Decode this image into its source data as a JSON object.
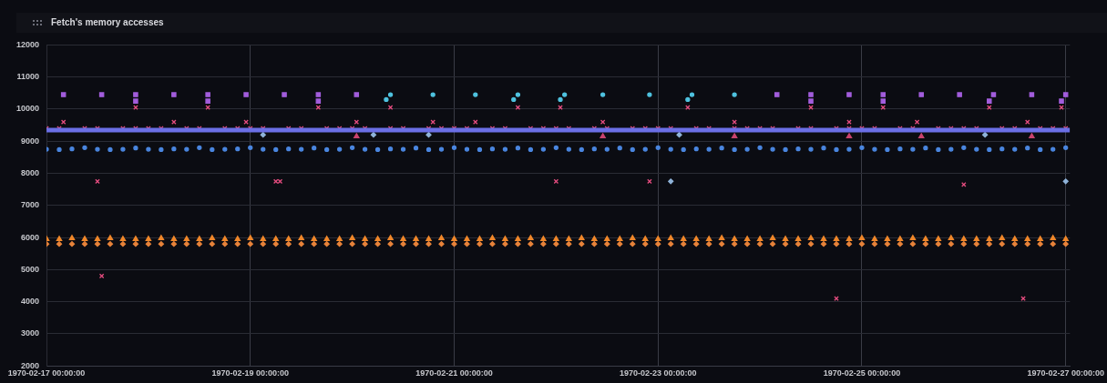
{
  "chart_data": {
    "type": "scatter",
    "title": "Fetch's memory accesses",
    "x": [
      "1970-02-17T00:00",
      "1970-02-17T03:00",
      "1970-02-17T06:00",
      "1970-02-17T09:00",
      "1970-02-17T12:00",
      "1970-02-17T15:00",
      "1970-02-17T18:00",
      "1970-02-17T21:00",
      "1970-02-18T00:00",
      "1970-02-18T03:00",
      "1970-02-18T06:00",
      "1970-02-18T09:00",
      "1970-02-18T12:00",
      "1970-02-18T15:00",
      "1970-02-18T18:00",
      "1970-02-18T21:00",
      "1970-02-19T00:00",
      "1970-02-19T03:00",
      "1970-02-19T06:00",
      "1970-02-19T09:00",
      "1970-02-19T12:00",
      "1970-02-19T15:00",
      "1970-02-19T18:00",
      "1970-02-19T21:00",
      "1970-02-20T00:00",
      "1970-02-20T03:00",
      "1970-02-20T06:00",
      "1970-02-20T09:00",
      "1970-02-20T12:00",
      "1970-02-20T15:00",
      "1970-02-20T18:00",
      "1970-02-20T21:00",
      "1970-02-21T00:00",
      "1970-02-21T03:00",
      "1970-02-21T06:00",
      "1970-02-21T09:00",
      "1970-02-21T12:00",
      "1970-02-21T15:00",
      "1970-02-21T18:00",
      "1970-02-21T21:00",
      "1970-02-22T00:00",
      "1970-02-22T03:00",
      "1970-02-22T06:00",
      "1970-02-22T09:00",
      "1970-02-22T12:00",
      "1970-02-22T15:00",
      "1970-02-22T18:00",
      "1970-02-22T21:00",
      "1970-02-23T00:00",
      "1970-02-23T03:00",
      "1970-02-23T06:00",
      "1970-02-23T09:00",
      "1970-02-23T12:00",
      "1970-02-23T15:00",
      "1970-02-23T18:00",
      "1970-02-23T21:00",
      "1970-02-24T00:00",
      "1970-02-24T03:00",
      "1970-02-24T06:00",
      "1970-02-24T09:00",
      "1970-02-24T12:00",
      "1970-02-24T15:00",
      "1970-02-24T18:00",
      "1970-02-24T21:00",
      "1970-02-25T00:00",
      "1970-02-25T03:00",
      "1970-02-25T06:00",
      "1970-02-25T09:00",
      "1970-02-25T12:00",
      "1970-02-25T15:00",
      "1970-02-25T18:00",
      "1970-02-25T21:00",
      "1970-02-26T00:00",
      "1970-02-26T03:00",
      "1970-02-26T06:00",
      "1970-02-26T09:00",
      "1970-02-26T12:00",
      "1970-02-26T15:00",
      "1970-02-26T18:00",
      "1970-02-26T21:00",
      "1970-02-27T00:00"
    ],
    "xlim": [
      "1970-02-17T00:00",
      "1970-02-27T01:00"
    ],
    "xticks": [
      {
        "value": "1970-02-17T00:00",
        "label": "1970-02-17 00:00:00"
      },
      {
        "value": "1970-02-19T00:00",
        "label": "1970-02-19 00:00:00"
      },
      {
        "value": "1970-02-21T00:00",
        "label": "1970-02-21 00:00:00"
      },
      {
        "value": "1970-02-23T00:00",
        "label": "1970-02-23 00:00:00"
      },
      {
        "value": "1970-02-25T00:00",
        "label": "1970-02-25 00:00:00"
      },
      {
        "value": "1970-02-27T00:00",
        "label": "1970-02-27 00:00:00"
      }
    ],
    "ylim": [
      2000,
      12000
    ],
    "yticks": [
      2000,
      3000,
      4000,
      5000,
      6000,
      7000,
      8000,
      9000,
      10000,
      11000,
      12000
    ],
    "grid": true,
    "series": [
      {
        "type": "line",
        "color": "#6b6fe6",
        "marker": "none",
        "x": [
          "1970-02-17T00:00",
          "1970-02-27T01:00"
        ],
        "values": [
          9350,
          9350
        ]
      },
      {
        "color": "#4a86e0",
        "marker": "circle",
        "values": [
          8750,
          8740,
          8760,
          8800,
          8750,
          8740,
          8750,
          8790,
          8750,
          8740,
          8760,
          8750,
          8800,
          8740,
          8750,
          8760,
          8800,
          8750,
          8740,
          8760,
          8750,
          8790,
          8740,
          8750,
          8800,
          8750,
          8740,
          8760,
          8750,
          8790,
          8740,
          8750,
          8800,
          8750,
          8740,
          8760,
          8750,
          8790,
          8740,
          8750,
          8800,
          8750,
          8740,
          8760,
          8750,
          8790,
          8740,
          8750,
          8800,
          8750,
          8740,
          8760,
          8750,
          8790,
          8740,
          8750,
          8800,
          8750,
          8740,
          8760,
          8750,
          8790,
          8740,
          8750,
          8800,
          8750,
          8740,
          8760,
          8750,
          8790,
          8740,
          8750,
          8800,
          8750,
          8740,
          8760,
          8750,
          8790,
          8740,
          8750,
          8800
        ]
      },
      {
        "color": "#e54c7f",
        "marker": "cross",
        "values": [
          9400,
          9400,
          null,
          9400,
          9400,
          null,
          9400,
          9400,
          9400,
          9400,
          null,
          9400,
          9400,
          null,
          9400,
          9400,
          9400,
          9400,
          null,
          9400,
          9400,
          null,
          9400,
          9400,
          9400,
          9400,
          null,
          9400,
          9400,
          null,
          9400,
          9400,
          9400,
          9400,
          null,
          9400,
          9400,
          null,
          9400,
          9400,
          9400,
          9400,
          null,
          9400,
          9400,
          null,
          9400,
          9400,
          9400,
          9400,
          null,
          9400,
          9400,
          null,
          9400,
          9400,
          9400,
          9400,
          null,
          9400,
          9400,
          null,
          9400,
          9400,
          9400,
          9400,
          null,
          9400,
          9400,
          null,
          9400,
          9400,
          9400,
          9400,
          null,
          9400,
          9400,
          null,
          9400,
          9400,
          9400
        ]
      },
      {
        "color": "#f0872a",
        "marker": "triangle",
        "values": [
          5950,
          5950,
          5980,
          5950,
          5950,
          5980,
          5950,
          5950,
          5950,
          5980,
          5950,
          5950,
          5950,
          5980,
          5950,
          5950,
          5980,
          5950,
          5950,
          5950,
          5980,
          5950,
          5950,
          5950,
          5980,
          5950,
          5950,
          5980,
          5950,
          5950,
          5950,
          5980,
          5950,
          5950,
          5950,
          5980,
          5950,
          5950,
          5980,
          5950,
          5950,
          5950,
          5980,
          5950,
          5950,
          5950,
          5980,
          5950,
          5950,
          5980,
          5950,
          5950,
          5950,
          5980,
          5950,
          5950,
          5950,
          5980,
          5950,
          5950,
          5980,
          5950,
          5950,
          5950,
          5980,
          5950,
          5950,
          5950,
          5980,
          5950,
          5950,
          5980,
          5950,
          5950,
          5950,
          5980,
          5950,
          5950,
          5950,
          5980,
          5950
        ]
      },
      {
        "color": "#e8833a",
        "marker": "diamond",
        "values": [
          5800,
          5800,
          5800,
          5800,
          5800,
          5800,
          5800,
          5800,
          5800,
          5800,
          5800,
          5800,
          5800,
          5800,
          5800,
          5800,
          5800,
          5800,
          5800,
          5800,
          5800,
          5800,
          5800,
          5800,
          5800,
          5800,
          5800,
          5800,
          5800,
          5800,
          5800,
          5800,
          5800,
          5800,
          5800,
          5800,
          5800,
          5800,
          5800,
          5800,
          5800,
          5800,
          5800,
          5800,
          5800,
          5800,
          5800,
          5800,
          5800,
          5800,
          5800,
          5800,
          5800,
          5800,
          5800,
          5800,
          5800,
          5800,
          5800,
          5800,
          5800,
          5800,
          5800,
          5800,
          5800,
          5800,
          5800,
          5800,
          5800,
          5800,
          5800,
          5800,
          5800,
          5800,
          5800,
          5800,
          5800,
          5800,
          5800,
          5800,
          5800
        ]
      },
      {
        "color": "#a25ddc",
        "marker": "square",
        "x": [
          "1970-02-17T04:00",
          "1970-02-17T13:00",
          "1970-02-17T21:00",
          "1970-02-18T06:00",
          "1970-02-18T14:00",
          "1970-02-18T23:00",
          "1970-02-19T08:00",
          "1970-02-19T16:00",
          "1970-02-20T01:00",
          "1970-02-24T04:00",
          "1970-02-24T12:00",
          "1970-02-24T21:00",
          "1970-02-25T05:00",
          "1970-02-25T14:00",
          "1970-02-25T23:00",
          "1970-02-26T07:00",
          "1970-02-26T16:00",
          "1970-02-27T00:00",
          "1970-02-17T21:00",
          "1970-02-18T14:00",
          "1970-02-19T16:00",
          "1970-02-24T12:00",
          "1970-02-25T05:00",
          "1970-02-26T06:00",
          "1970-02-26T23:00"
        ],
        "values": [
          10450,
          10450,
          10450,
          10450,
          10450,
          10450,
          10450,
          10450,
          10450,
          10450,
          10450,
          10450,
          10450,
          10450,
          10450,
          10450,
          10450,
          10450,
          10250,
          10250,
          10250,
          10250,
          10250,
          10250,
          10250
        ]
      },
      {
        "color": "#4fc3e0",
        "marker": "circle",
        "x": [
          "1970-02-20T09:00",
          "1970-02-20T19:00",
          "1970-02-21T05:00",
          "1970-02-21T15:00",
          "1970-02-22T02:00",
          "1970-02-22T11:00",
          "1970-02-22T22:00",
          "1970-02-23T08:00",
          "1970-02-23T18:00",
          "1970-02-20T08:00",
          "1970-02-21T14:00",
          "1970-02-22T01:00",
          "1970-02-23T07:00"
        ],
        "values": [
          10450,
          10450,
          10450,
          10450,
          10450,
          10450,
          10450,
          10450,
          10450,
          10300,
          10300,
          10300,
          10300
        ]
      },
      {
        "color": "#e54c7f",
        "marker": "cross",
        "x": [
          "1970-02-17T21:00",
          "1970-02-18T14:00",
          "1970-02-19T16:00",
          "1970-02-20T09:00",
          "1970-02-21T15:00",
          "1970-02-22T01:00",
          "1970-02-23T07:00",
          "1970-02-24T12:00",
          "1970-02-25T05:00",
          "1970-02-26T06:00",
          "1970-02-26T23:00",
          "1970-02-17T04:00",
          "1970-02-18T06:00",
          "1970-02-18T23:00",
          "1970-02-20T01:00",
          "1970-02-20T19:00",
          "1970-02-21T05:00",
          "1970-02-22T11:00",
          "1970-02-23T18:00",
          "1970-02-24T21:00",
          "1970-02-25T13:00",
          "1970-02-26T15:00",
          "1970-02-17T12:00",
          "1970-02-19T06:00",
          "1970-02-19T07:00",
          "1970-02-22T00:00",
          "1970-02-22T22:00",
          "1970-02-26T00:00",
          "1970-02-17T13:00",
          "1970-02-24T18:00",
          "1970-02-26T14:00"
        ],
        "values": [
          10050,
          10050,
          10050,
          10050,
          10050,
          10050,
          10050,
          10050,
          10050,
          10050,
          10050,
          9600,
          9600,
          9600,
          9600,
          9600,
          9600,
          9600,
          9600,
          9600,
          9600,
          9600,
          7750,
          7750,
          7750,
          7750,
          7750,
          7650,
          4800,
          4100,
          4100
        ]
      },
      {
        "color": "#c9436f",
        "marker": "triangle",
        "x": [
          "1970-02-20T01:00",
          "1970-02-22T11:00",
          "1970-02-23T18:00",
          "1970-02-24T21:00",
          "1970-02-25T14:00",
          "1970-02-26T16:00"
        ],
        "values": [
          9150,
          9150,
          9150,
          9150,
          9150,
          9150
        ]
      },
      {
        "color": "#8fb3d9",
        "marker": "diamond",
        "x": [
          "1970-02-19T03:00",
          "1970-02-20T05:00",
          "1970-02-20T18:00",
          "1970-02-23T05:00",
          "1970-02-26T05:00",
          "1970-02-23T03:00",
          "1970-02-27T00:00"
        ],
        "values": [
          9200,
          9200,
          9200,
          9200,
          9200,
          7750,
          7750
        ]
      }
    ]
  }
}
